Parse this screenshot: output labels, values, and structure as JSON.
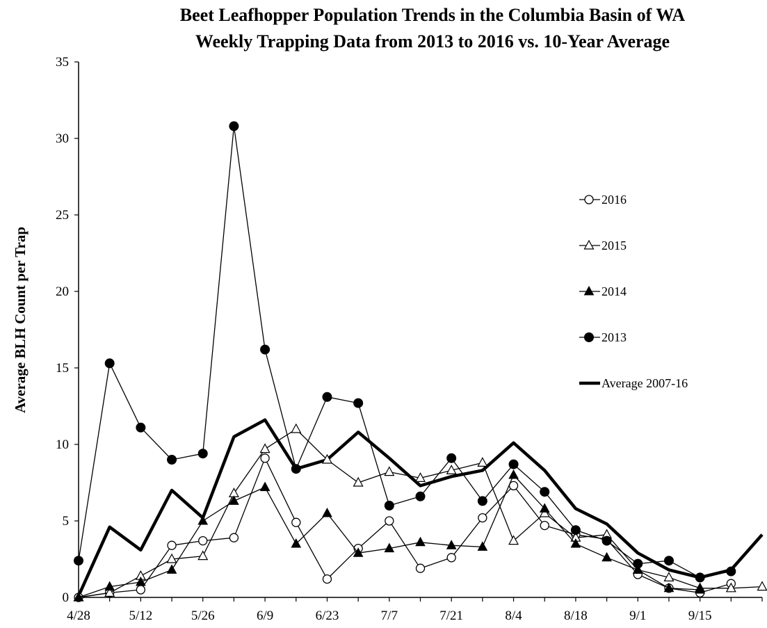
{
  "chart_data": {
    "type": "line",
    "title_lines": [
      "Beet Leafhopper Population Trends in the Columbia Basin of WA",
      "Weekly Trapping Data from 2013 to 2016 vs. 10-Year Average"
    ],
    "xlabel": "",
    "ylabel": "Average BLH Count per Trap",
    "ylim": [
      0,
      35
    ],
    "yticks": [
      0,
      5,
      10,
      15,
      20,
      25,
      30,
      35
    ],
    "x": [
      "4/28",
      "5/5",
      "5/12",
      "5/19",
      "5/26",
      "6/2",
      "6/9",
      "6/16",
      "6/23",
      "6/30",
      "7/7",
      "7/14",
      "7/21",
      "7/28",
      "8/4",
      "8/11",
      "8/18",
      "8/25",
      "9/1",
      "9/8",
      "9/15",
      "9/22",
      "9/29"
    ],
    "x_tick_labels": [
      "4/28",
      "",
      "5/12",
      "",
      "5/26",
      "",
      "6/9",
      "",
      "6/23",
      "",
      "7/7",
      "",
      "7/21",
      "",
      "8/4",
      "",
      "8/18",
      "",
      "9/1",
      "",
      "9/15",
      "",
      ""
    ],
    "grid": false,
    "legend_position": "right",
    "series": [
      {
        "name": "2016",
        "marker": "circle-open",
        "values": [
          0,
          0.3,
          0.5,
          3.4,
          3.7,
          3.9,
          9.1,
          4.9,
          1.2,
          3.2,
          5.0,
          1.9,
          2.6,
          5.2,
          7.3,
          4.7,
          4.1,
          3.8,
          1.5,
          0.6,
          0.3,
          0.9,
          null
        ]
      },
      {
        "name": "2015",
        "marker": "triangle-open",
        "values": [
          0,
          0.3,
          1.4,
          2.5,
          2.7,
          6.8,
          9.7,
          11.0,
          9.0,
          7.5,
          8.2,
          7.8,
          8.3,
          8.8,
          3.7,
          5.5,
          3.9,
          4.1,
          1.8,
          1.3,
          0.6,
          0.6,
          0.7
        ]
      },
      {
        "name": "2014",
        "marker": "triangle-filled",
        "values": [
          0,
          0.7,
          1.0,
          1.8,
          5.0,
          6.3,
          7.2,
          3.5,
          5.5,
          2.9,
          3.2,
          3.6,
          3.4,
          3.3,
          8.0,
          5.8,
          3.5,
          2.6,
          1.8,
          0.6,
          0.5,
          null,
          null
        ]
      },
      {
        "name": "2013",
        "marker": "circle-filled",
        "values": [
          2.4,
          15.3,
          11.1,
          9.0,
          9.4,
          30.8,
          16.2,
          8.4,
          13.1,
          12.7,
          6.0,
          6.6,
          9.1,
          6.3,
          8.7,
          6.9,
          4.4,
          3.7,
          2.2,
          2.4,
          1.3,
          1.7,
          null
        ]
      },
      {
        "name": "Average 2007-16",
        "marker": "none",
        "bold": true,
        "values": [
          0.1,
          4.6,
          3.1,
          7.0,
          5.2,
          10.5,
          11.6,
          8.4,
          9.0,
          10.8,
          9.1,
          7.3,
          7.9,
          8.3,
          10.1,
          8.3,
          5.8,
          4.8,
          2.9,
          1.8,
          1.3,
          1.8,
          4.1
        ]
      }
    ],
    "colors": {
      "line": "#000000",
      "background": "#ffffff"
    }
  }
}
